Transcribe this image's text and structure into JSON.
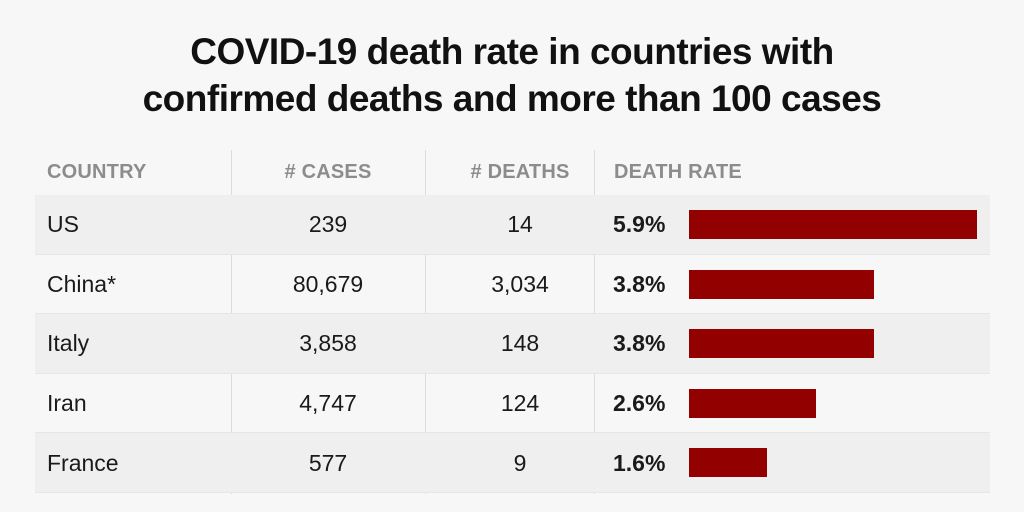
{
  "title": {
    "line1": "COVID-19 death rate in countries with",
    "line2": "confirmed deaths and more than 100 cases"
  },
  "colors": {
    "bar": "#930000",
    "header_text": "#8c8c8c",
    "row_shade": "#efefef",
    "background": "#f7f7f7"
  },
  "table": {
    "headers": [
      "COUNTRY",
      "# CASES",
      "# DEATHS",
      "DEATH RATE"
    ]
  },
  "chart_data": {
    "type": "table",
    "title": "COVID-19 death rate in countries with confirmed deaths and more than 100 cases",
    "columns": [
      "COUNTRY",
      "# CASES",
      "# DEATHS",
      "DEATH RATE"
    ],
    "rows": [
      {
        "country": "US",
        "cases": "239",
        "deaths": "14",
        "rate_label": "5.9%",
        "rate": 5.9
      },
      {
        "country": "China*",
        "cases": "80,679",
        "deaths": "3,034",
        "rate_label": "3.8%",
        "rate": 3.8
      },
      {
        "country": "Italy",
        "cases": "3,858",
        "deaths": "148",
        "rate_label": "3.8%",
        "rate": 3.8
      },
      {
        "country": "Iran",
        "cases": "4,747",
        "deaths": "124",
        "rate_label": "2.6%",
        "rate": 2.6
      },
      {
        "country": "France",
        "cases": "577",
        "deaths": "9",
        "rate_label": "1.6%",
        "rate": 1.6
      }
    ],
    "bar_max": 5.9
  }
}
